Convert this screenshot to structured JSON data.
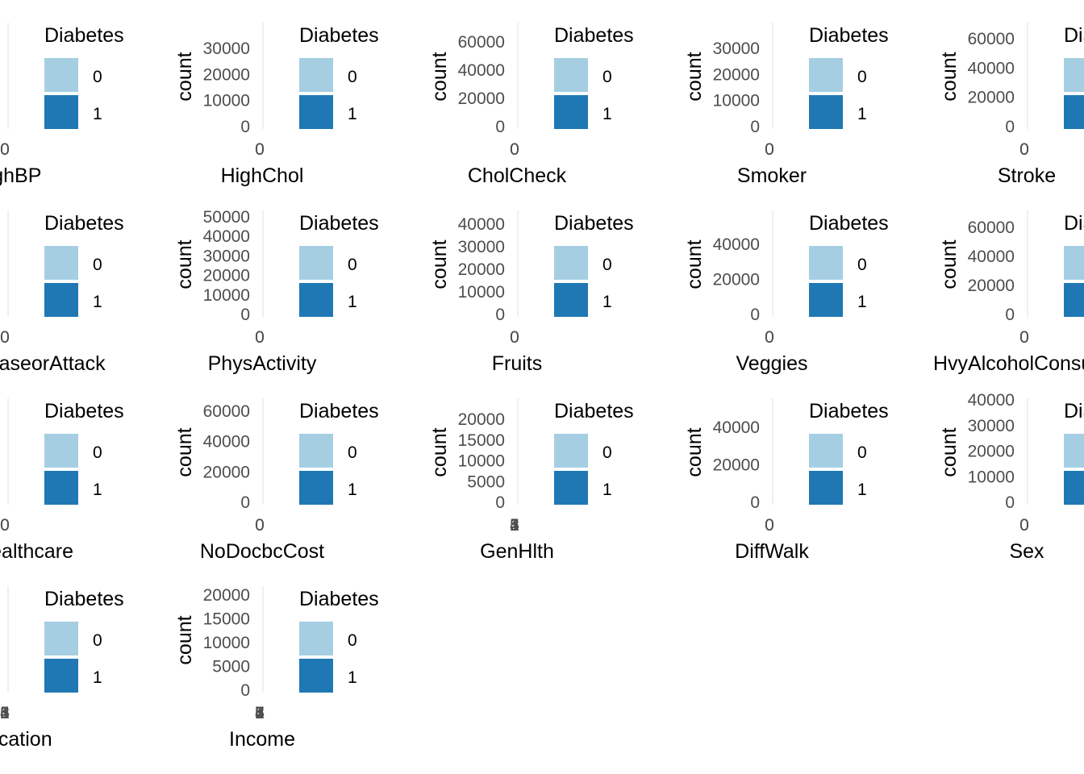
{
  "chart_data": {
    "type": "bar",
    "layout": "grid 4 rows x 5 columns, panels clipped by neighbors",
    "colors": {
      "0": "#a6cee3",
      "1": "#1f78b4",
      "gridline": "#ebebeb"
    },
    "legend": {
      "title": "Diabetes",
      "entries": [
        "0",
        "1"
      ],
      "placement": "right"
    },
    "ylabel": "count",
    "panels": [
      {
        "xlabel": "HighBP",
        "yticks": [],
        "xticks": [
          "0",
          "0"
        ]
      },
      {
        "xlabel": "HighChol",
        "yticks": [
          "0",
          "10000",
          "20000",
          "30000"
        ],
        "xticks": [
          "0",
          "0"
        ]
      },
      {
        "xlabel": "CholCheck",
        "yticks": [
          "0",
          "20000",
          "40000",
          "60000"
        ],
        "xticks": [
          "0",
          "0"
        ]
      },
      {
        "xlabel": "Smoker",
        "yticks": [
          "0",
          "10000",
          "20000",
          "30000"
        ],
        "xticks": [
          "0",
          "0"
        ]
      },
      {
        "xlabel": "Stroke",
        "yticks": [
          "0",
          "20000",
          "40000",
          "60000"
        ],
        "xticks": [
          "0",
          "0"
        ]
      },
      {
        "xlabel": "HeartDiseaseorAttack",
        "yticks": [],
        "xticks": [
          "0",
          "0"
        ]
      },
      {
        "xlabel": "PhysActivity",
        "yticks": [
          "0",
          "10000",
          "20000",
          "30000",
          "40000",
          "50000"
        ],
        "xticks": [
          "0",
          "0"
        ]
      },
      {
        "xlabel": "Fruits",
        "yticks": [
          "0",
          "10000",
          "20000",
          "30000",
          "40000"
        ],
        "xticks": [
          "0",
          "0"
        ]
      },
      {
        "xlabel": "Veggies",
        "yticks": [
          "0",
          "20000",
          "40000"
        ],
        "xticks": [
          "0",
          "0"
        ]
      },
      {
        "xlabel": "HvyAlcoholConsump",
        "yticks": [
          "0",
          "20000",
          "40000",
          "60000"
        ],
        "xticks": [
          "0",
          "0"
        ]
      },
      {
        "xlabel": "AnyHealthcare",
        "yticks": [],
        "xticks": [
          "0",
          "0"
        ]
      },
      {
        "xlabel": "NoDocbcCost",
        "yticks": [
          "0",
          "20000",
          "40000",
          "60000"
        ],
        "xticks": [
          "0",
          "0"
        ]
      },
      {
        "xlabel": "GenHlth",
        "yticks": [
          "0",
          "5000",
          "10000",
          "15000",
          "20000"
        ],
        "xticks": [
          "1",
          "2",
          "3",
          "4",
          "5"
        ]
      },
      {
        "xlabel": "DiffWalk",
        "yticks": [
          "0",
          "20000",
          "40000"
        ],
        "xticks": [
          "0",
          "0"
        ]
      },
      {
        "xlabel": "Sex",
        "yticks": [
          "0",
          "10000",
          "20000",
          "30000",
          "40000"
        ],
        "xticks": [
          "0",
          "0"
        ]
      },
      {
        "xlabel": "Education",
        "yticks": [],
        "xticks": [
          "1",
          "2",
          "3",
          "4",
          "5",
          "6"
        ]
      },
      {
        "xlabel": "Income",
        "yticks": [
          "0",
          "5000",
          "10000",
          "15000",
          "20000"
        ],
        "xticks": [
          "1",
          "2",
          "3",
          "4",
          "5",
          "6",
          "7",
          "8"
        ]
      }
    ]
  }
}
